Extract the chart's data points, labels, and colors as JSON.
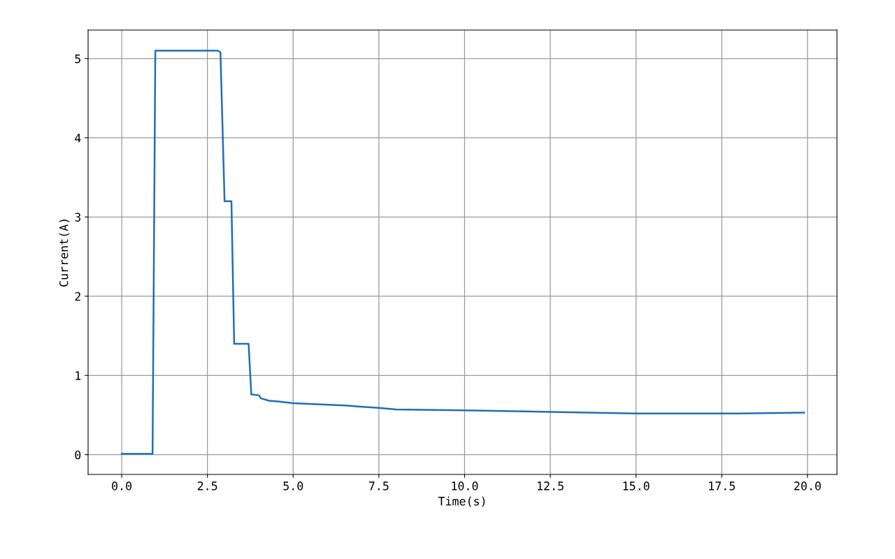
{
  "chart_data": {
    "type": "line",
    "xlabel": "Time(s)",
    "ylabel": "Current(A)",
    "x": [
      0,
      0.9,
      0.98,
      2.8,
      2.88,
      3.0,
      3.2,
      3.28,
      3.7,
      3.78,
      4.0,
      4.06,
      4.3,
      4.6,
      5.0,
      6.5,
      7.5,
      8.0,
      10.0,
      12.5,
      15.0,
      18.0,
      19.9
    ],
    "series": [
      {
        "color": "#1f6fb4",
        "values": [
          0.01,
          0.01,
          5.1,
          5.1,
          5.08,
          3.2,
          3.2,
          1.4,
          1.4,
          0.76,
          0.75,
          0.71,
          0.68,
          0.67,
          0.65,
          0.62,
          0.59,
          0.57,
          0.56,
          0.54,
          0.52,
          0.52,
          0.53
        ]
      }
    ],
    "xlim": [
      -0.98,
      20.86
    ],
    "ylim": [
      -0.25,
      5.36
    ],
    "xticks": [
      {
        "value": 0,
        "label": "0.0"
      },
      {
        "value": 2.5,
        "label": "2.5"
      },
      {
        "value": 5,
        "label": "5.0"
      },
      {
        "value": 7.5,
        "label": "7.5"
      },
      {
        "value": 10,
        "label": "10.0"
      },
      {
        "value": 12.5,
        "label": "12.5"
      },
      {
        "value": 15,
        "label": "15.0"
      },
      {
        "value": 17.5,
        "label": "17.5"
      },
      {
        "value": 20,
        "label": "20.0"
      }
    ],
    "yticks": [
      0,
      1,
      2,
      3,
      4,
      5
    ],
    "grid": true,
    "marker": "none",
    "line_style": "solid"
  }
}
